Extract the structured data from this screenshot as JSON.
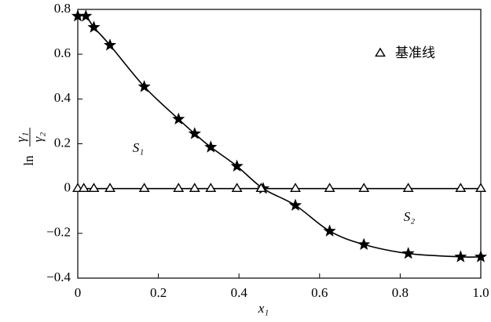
{
  "chart_data": {
    "type": "line",
    "xlabel": "x₁",
    "ylabel": {
      "prefix": "ln",
      "numerator": "γ₁",
      "denominator": "γ₂"
    },
    "annotations": [
      "S₁",
      "S₂"
    ],
    "series": [
      {
        "marker": "star",
        "color": "#000000",
        "x": [
          0.0,
          0.02,
          0.04,
          0.08,
          0.165,
          0.25,
          0.29,
          0.33,
          0.395,
          0.46,
          0.54,
          0.625,
          0.71,
          0.82,
          0.95,
          1.0
        ],
        "values": [
          0.77,
          0.77,
          0.72,
          0.64,
          0.455,
          0.31,
          0.245,
          0.185,
          0.1,
          0.0,
          -0.075,
          -0.19,
          -0.25,
          -0.29,
          -0.305,
          -0.305
        ]
      },
      {
        "name": "基准线",
        "marker": "triangle",
        "color": "#000000",
        "x": [
          0.0,
          0.015,
          0.04,
          0.08,
          0.165,
          0.25,
          0.29,
          0.33,
          0.395,
          0.455,
          0.54,
          0.625,
          0.71,
          0.82,
          0.95,
          1.0
        ],
        "values": [
          0,
          0,
          0,
          0,
          0,
          0,
          0,
          0,
          0,
          0,
          0,
          0,
          0,
          0,
          0,
          0
        ]
      }
    ],
    "xlim": [
      0,
      1.0
    ],
    "xticks": [
      0,
      0.2,
      0.4,
      0.6,
      0.8,
      {
        "value": 1.0,
        "label": "1.0"
      }
    ],
    "ylim": [
      -0.4,
      0.8
    ],
    "yticks": [
      {
        "value": -0.4,
        "label": "−0.4"
      },
      {
        "value": -0.2,
        "label": "−0.2"
      },
      0,
      0.2,
      0.4,
      0.6,
      0.8
    ],
    "grid": false,
    "legend": "upper right"
  }
}
